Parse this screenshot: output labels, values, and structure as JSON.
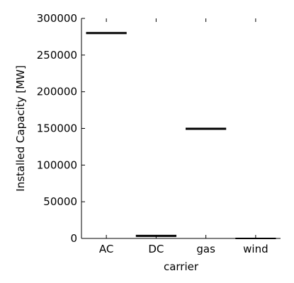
{
  "chart_data": {
    "type": "box",
    "title": "",
    "xlabel": "carrier",
    "ylabel": "Installed Capacity [MW]",
    "categories": [
      "AC",
      "DC",
      "gas",
      "wind"
    ],
    "values": [
      280000,
      3500,
      149500,
      0
    ],
    "ylim": [
      0,
      300000
    ],
    "yticks": [
      0,
      50000,
      100000,
      150000,
      200000,
      250000,
      300000
    ],
    "ytick_labels": [
      "0",
      "50000",
      "100000",
      "150000",
      "200000",
      "250000",
      "300000"
    ],
    "grid": false,
    "legend": "none",
    "colors": {
      "box_line": "#000000",
      "axis": "#000000"
    }
  }
}
